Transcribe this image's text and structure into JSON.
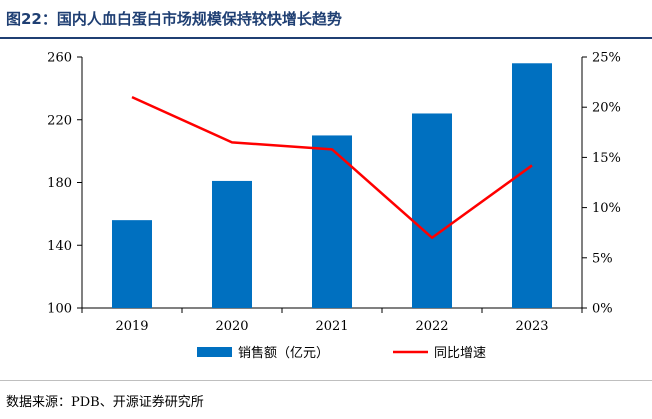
{
  "title": "图22：国内人血白蛋白市场规模保持较快增长趋势",
  "source": "数据来源：PDB、开源证券研究所",
  "colors": {
    "bar": "#0070c0",
    "line": "#ff0000",
    "title": "#1f3f73"
  },
  "chart_data": {
    "type": "bar",
    "categories": [
      "2019",
      "2020",
      "2021",
      "2022",
      "2023"
    ],
    "series": [
      {
        "name": "销售额（亿元）",
        "type": "bar",
        "axis": "left",
        "values": [
          156,
          181,
          210,
          224,
          256
        ]
      },
      {
        "name": "同比增速",
        "type": "line",
        "axis": "right",
        "values": [
          21.0,
          16.5,
          15.8,
          7.0,
          14.2
        ]
      }
    ],
    "y_left": {
      "min": 100,
      "max": 260,
      "ticks": [
        100,
        140,
        180,
        220,
        260
      ],
      "tick_labels": [
        "100",
        "140",
        "180",
        "220",
        "260"
      ]
    },
    "y_right": {
      "min": 0,
      "max": 25,
      "ticks": [
        0,
        5,
        10,
        15,
        20,
        25
      ],
      "tick_labels": [
        "0%",
        "5%",
        "10%",
        "15%",
        "20%",
        "25%"
      ]
    },
    "grid": false,
    "legend_position": "bottom"
  }
}
